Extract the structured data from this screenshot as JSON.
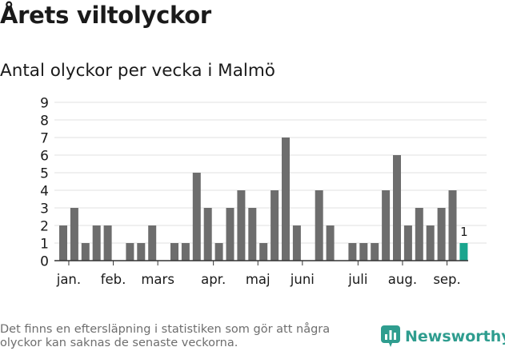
{
  "title": "Årets viltolyckor",
  "subtitle": "Antal olyckor per vecka i Malmö",
  "footnote": "Det finns en eftersläpning i statistiken som gör att några olyckor kan saknas de senaste veckorna.",
  "brand": {
    "label": "Newsworthy",
    "icon": "newsworthy-logo-icon",
    "color": "#2f9d8f"
  },
  "colors": {
    "bar": "#6d6d6d",
    "highlight": "#1aa58e",
    "grid": "#e0e0e0",
    "axis": "#333333",
    "text": "#1a1a1a"
  },
  "chart_data": {
    "type": "bar",
    "title": "Årets viltolyckor",
    "subtitle": "Antal olyckor per vecka i Malmö",
    "ylim": [
      0,
      9
    ],
    "yticks": [
      0,
      1,
      2,
      3,
      4,
      5,
      6,
      7,
      8,
      9
    ],
    "grid": true,
    "values": [
      2,
      3,
      1,
      2,
      2,
      0,
      1,
      1,
      2,
      0,
      1,
      1,
      5,
      3,
      1,
      3,
      4,
      3,
      1,
      4,
      7,
      2,
      0,
      4,
      2,
      0,
      1,
      1,
      1,
      4,
      6,
      2,
      3,
      2,
      3,
      4,
      1
    ],
    "highlight_index": 36,
    "highlight_label": "1",
    "month_labels": [
      {
        "label": "jan.",
        "week_index": 0.5
      },
      {
        "label": "feb.",
        "week_index": 4.5
      },
      {
        "label": "mars",
        "week_index": 8.5
      },
      {
        "label": "apr.",
        "week_index": 13.5
      },
      {
        "label": "maj",
        "week_index": 17.5
      },
      {
        "label": "juni",
        "week_index": 21.5
      },
      {
        "label": "juli",
        "week_index": 26.5
      },
      {
        "label": "aug.",
        "week_index": 30.5
      },
      {
        "label": "sep.",
        "week_index": 34.5
      }
    ]
  }
}
